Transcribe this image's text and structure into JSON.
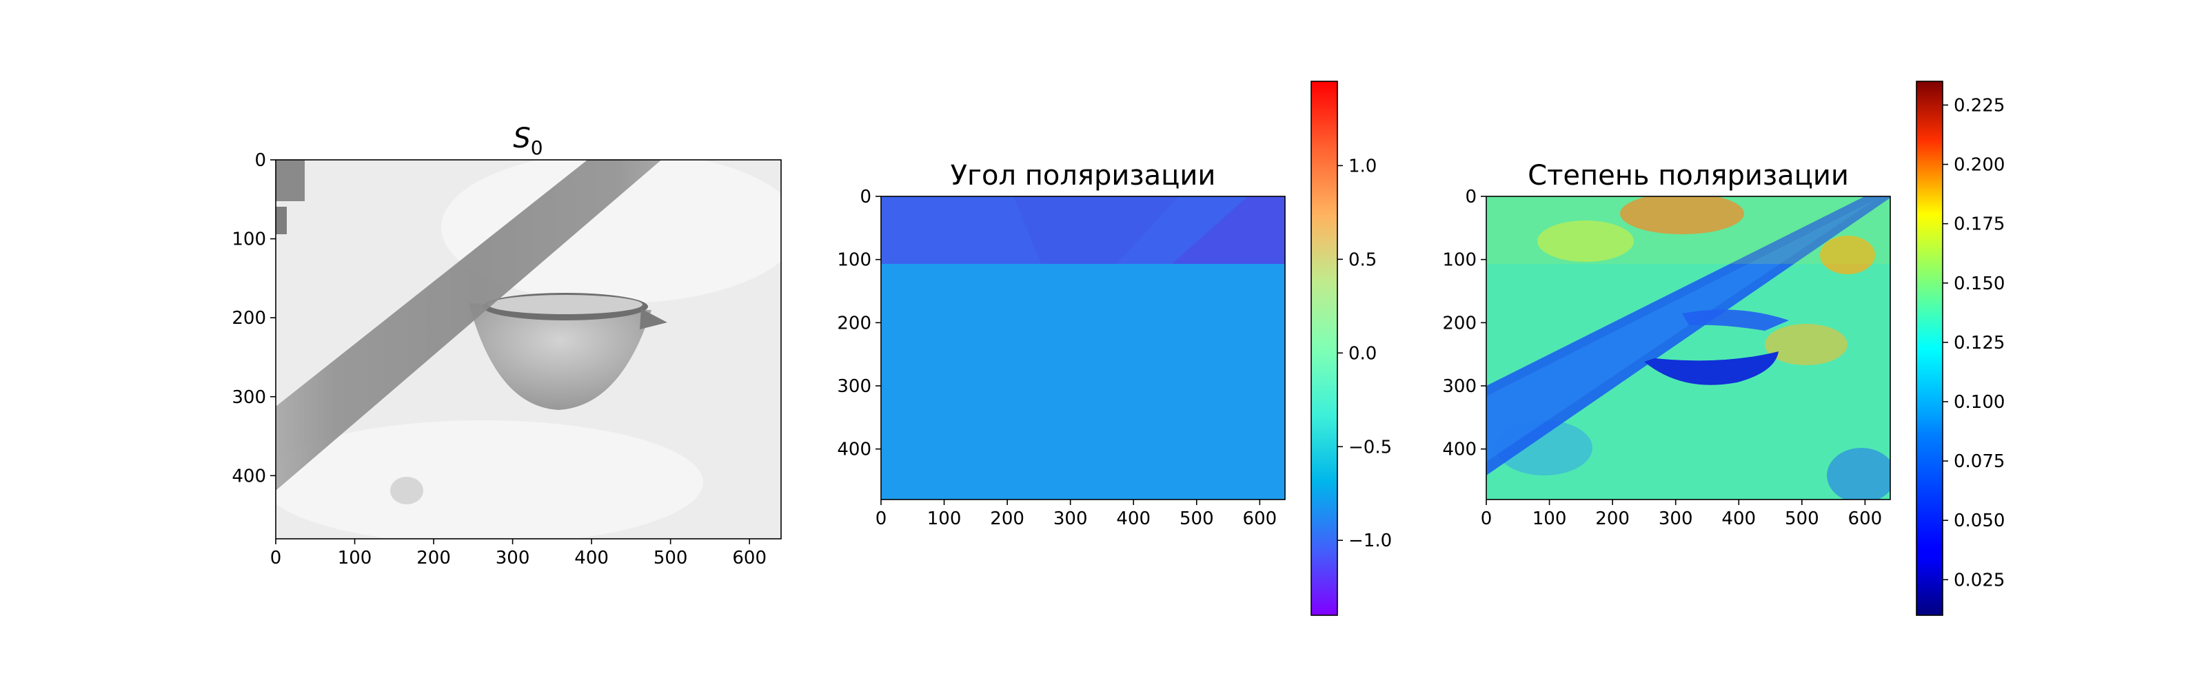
{
  "chart_data": [
    {
      "type": "heatmap",
      "title": "S",
      "title_subscript": "0",
      "colormap": "gray",
      "x_ticks": [
        "0",
        "100",
        "200",
        "300",
        "400",
        "500",
        "600"
      ],
      "y_ticks": [
        "0",
        "100",
        "200",
        "300",
        "400"
      ],
      "xlim": [
        0,
        640
      ],
      "ylim": [
        480,
        0
      ],
      "colorbar": null
    },
    {
      "type": "heatmap",
      "title": "Угол поляризации",
      "colormap": "rainbow",
      "x_ticks": [
        "0",
        "100",
        "200",
        "300",
        "400",
        "500",
        "600"
      ],
      "y_ticks": [
        "0",
        "100",
        "200",
        "300",
        "400"
      ],
      "xlim": [
        0,
        640
      ],
      "ylim": [
        480,
        0
      ],
      "colorbar": {
        "range": [
          -1.4,
          1.45
        ],
        "ticks": [
          "1.0",
          "0.5",
          "0.0",
          "−0.5",
          "−1.0"
        ],
        "tick_values": [
          1.0,
          0.5,
          0.0,
          -0.5,
          -1.0
        ]
      }
    },
    {
      "type": "heatmap",
      "title": "Степень поляризации",
      "colormap": "jet",
      "x_ticks": [
        "0",
        "100",
        "200",
        "300",
        "400",
        "500",
        "600"
      ],
      "y_ticks": [
        "0",
        "100",
        "200",
        "300",
        "400"
      ],
      "xlim": [
        0,
        640
      ],
      "ylim": [
        480,
        0
      ],
      "colorbar": {
        "range": [
          0.01,
          0.235
        ],
        "ticks": [
          "0.225",
          "0.200",
          "0.175",
          "0.150",
          "0.125",
          "0.100",
          "0.075",
          "0.050",
          "0.025"
        ],
        "tick_values": [
          0.225,
          0.2,
          0.175,
          0.15,
          0.125,
          0.1,
          0.075,
          0.05,
          0.025
        ]
      }
    }
  ]
}
